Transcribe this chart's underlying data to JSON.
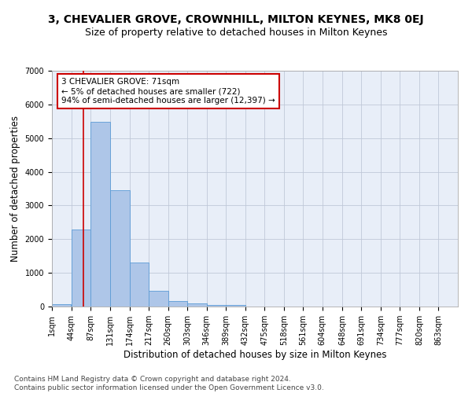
{
  "title": "3, CHEVALIER GROVE, CROWNHILL, MILTON KEYNES, MK8 0EJ",
  "subtitle": "Size of property relative to detached houses in Milton Keynes",
  "xlabel": "Distribution of detached houses by size in Milton Keynes",
  "ylabel": "Number of detached properties",
  "footer_line1": "Contains HM Land Registry data © Crown copyright and database right 2024.",
  "footer_line2": "Contains public sector information licensed under the Open Government Licence v3.0.",
  "annotation_title": "3 CHEVALIER GROVE: 71sqm",
  "annotation_line1": "← 5% of detached houses are smaller (722)",
  "annotation_line2": "94% of semi-detached houses are larger (12,397) →",
  "property_size": 71,
  "bar_categories": [
    "1sqm",
    "44sqm",
    "87sqm",
    "131sqm",
    "174sqm",
    "217sqm",
    "260sqm",
    "303sqm",
    "346sqm",
    "389sqm",
    "432sqm",
    "475sqm",
    "518sqm",
    "561sqm",
    "604sqm",
    "648sqm",
    "691sqm",
    "734sqm",
    "777sqm",
    "820sqm",
    "863sqm"
  ],
  "bar_values": [
    75,
    2290,
    5480,
    3450,
    1310,
    460,
    155,
    85,
    50,
    50,
    0,
    0,
    0,
    0,
    0,
    0,
    0,
    0,
    0,
    0,
    0
  ],
  "bar_color": "#aec6e8",
  "bar_edge_color": "#5b9bd5",
  "vline_color": "#cc0000",
  "ylim": [
    0,
    7000
  ],
  "yticks": [
    0,
    1000,
    2000,
    3000,
    4000,
    5000,
    6000,
    7000
  ],
  "grid_color": "#c0c8d8",
  "background_color": "#e8eef8",
  "annotation_box_color": "#ffffff",
  "annotation_box_edge": "#cc0000",
  "title_fontsize": 10,
  "subtitle_fontsize": 9,
  "xlabel_fontsize": 8.5,
  "ylabel_fontsize": 8.5,
  "tick_fontsize": 7,
  "annotation_fontsize": 7.5,
  "footer_fontsize": 6.5
}
